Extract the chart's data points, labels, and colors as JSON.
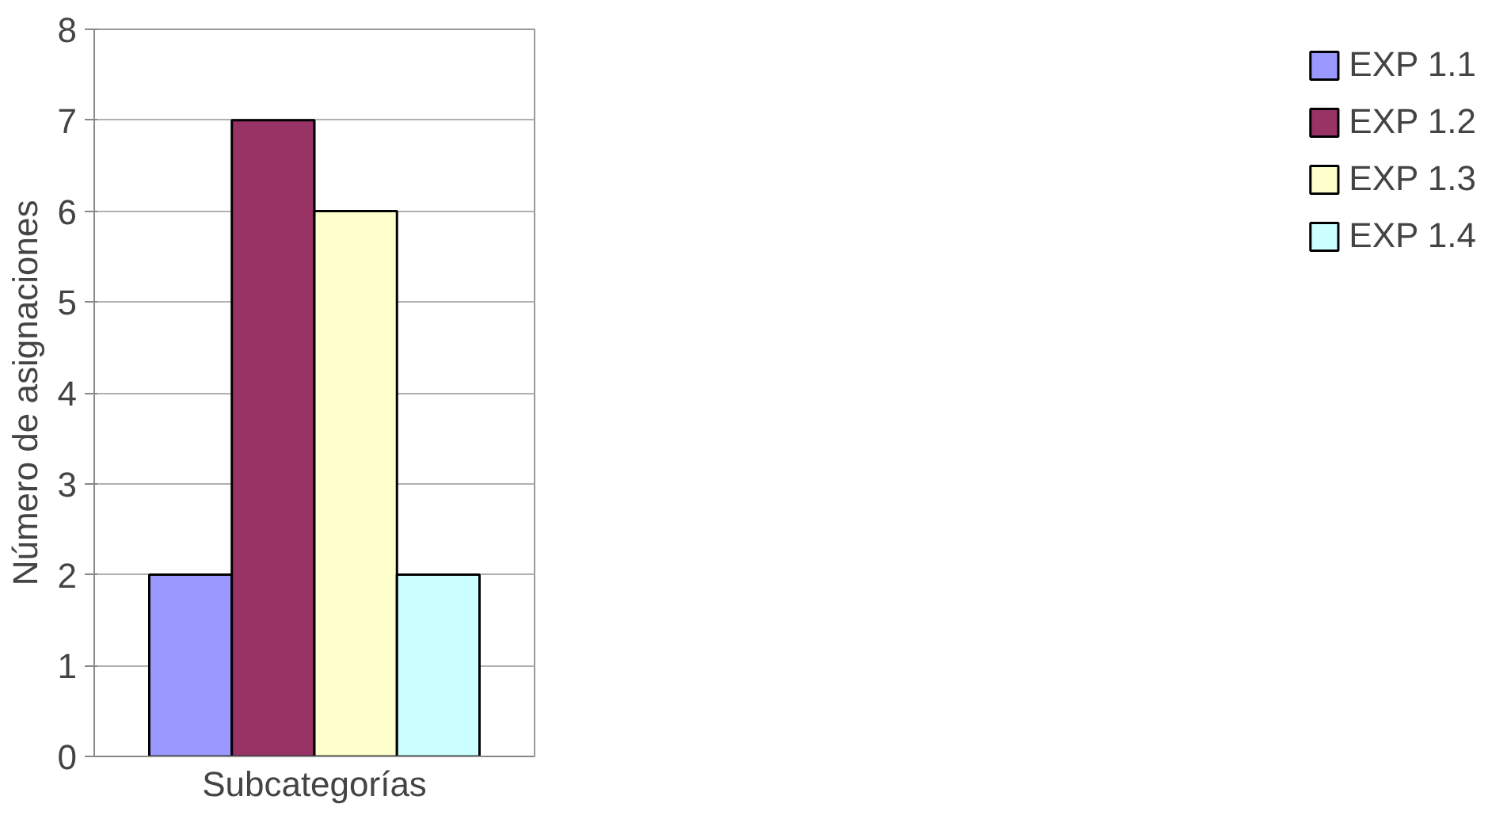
{
  "chart_data": {
    "type": "bar",
    "xlabel": "Subcategorías",
    "ylabel": "Número de asignaciones",
    "categories": [
      null
    ],
    "series": [
      {
        "name": "EXP 1.1",
        "color": "#9999ff",
        "values": [
          2
        ]
      },
      {
        "name": "EXP 1.2",
        "color": "#993366",
        "values": [
          7
        ]
      },
      {
        "name": "EXP 1.3",
        "color": "#ffffcc",
        "values": [
          6
        ]
      },
      {
        "name": "EXP 1.4",
        "color": "#ccffff",
        "values": [
          2
        ]
      }
    ],
    "ylim": [
      0,
      8
    ],
    "yticks": [
      0,
      1,
      2,
      3,
      4,
      5,
      6,
      7,
      8
    ],
    "grid": "y",
    "legend": "right"
  }
}
